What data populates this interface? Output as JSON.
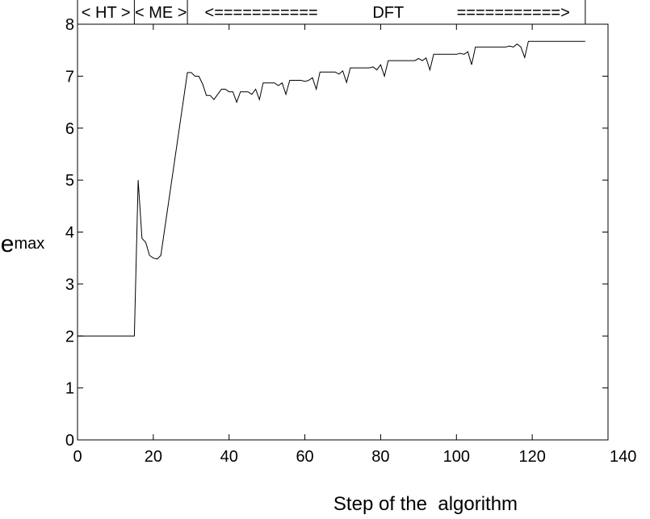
{
  "chart_data": {
    "type": "line",
    "title": "",
    "xlabel": "Step of the  algorithm",
    "ylabel": {
      "main": "e",
      "sub": "max"
    },
    "xlim": [
      0,
      140
    ],
    "ylim": [
      0,
      8
    ],
    "xticks": [
      0,
      20,
      40,
      60,
      80,
      100,
      120,
      140
    ],
    "yticks": [
      0,
      1,
      2,
      3,
      4,
      5,
      6,
      7,
      8
    ],
    "grid": false,
    "legend": "none",
    "line_color": "#000000",
    "phase_annotations": [
      {
        "label": "< HT >",
        "from": 0,
        "to": 15
      },
      {
        "label": "< ME >",
        "from": 15,
        "to": 29
      },
      {
        "label": "<===========",
        "from": 29,
        "to": 68
      },
      {
        "label": "DFT",
        "from": 68,
        "to": 96
      },
      {
        "label": "===========>",
        "from": 96,
        "to": 134
      }
    ],
    "series": [
      {
        "x": [
          0,
          15,
          16,
          17,
          18,
          19,
          20,
          21,
          22,
          29,
          30,
          31,
          32,
          33,
          34,
          35,
          36,
          37,
          38,
          39,
          40,
          41,
          42,
          43,
          44,
          45,
          46,
          47,
          48,
          49,
          50,
          51,
          52,
          53,
          54,
          55,
          56,
          57,
          58,
          59,
          60,
          61,
          62,
          63,
          64,
          65,
          66,
          67,
          68,
          69,
          70,
          71,
          72,
          73,
          74,
          75,
          76,
          77,
          78,
          79,
          80,
          81,
          82,
          83,
          84,
          85,
          86,
          87,
          88,
          89,
          90,
          91,
          92,
          93,
          94,
          95,
          96,
          97,
          98,
          99,
          100,
          101,
          102,
          103,
          104,
          105,
          106,
          107,
          108,
          109,
          110,
          111,
          112,
          113,
          114,
          115,
          116,
          117,
          118,
          119,
          120,
          134
        ],
        "y": [
          2.0,
          2.0,
          5.0,
          3.88,
          3.8,
          3.55,
          3.5,
          3.48,
          3.55,
          7.07,
          7.07,
          7.0,
          7.0,
          6.85,
          6.63,
          6.63,
          6.55,
          6.65,
          6.75,
          6.75,
          6.7,
          6.7,
          6.5,
          6.7,
          6.7,
          6.7,
          6.65,
          6.75,
          6.55,
          6.87,
          6.87,
          6.87,
          6.87,
          6.82,
          6.87,
          6.65,
          6.92,
          6.92,
          6.92,
          6.92,
          6.9,
          6.92,
          6.97,
          6.75,
          7.08,
          7.08,
          7.08,
          7.08,
          7.08,
          7.04,
          7.1,
          6.88,
          7.16,
          7.16,
          7.16,
          7.16,
          7.16,
          7.16,
          7.18,
          7.12,
          7.22,
          7.0,
          7.3,
          7.3,
          7.3,
          7.3,
          7.3,
          7.3,
          7.3,
          7.3,
          7.34,
          7.3,
          7.35,
          7.12,
          7.42,
          7.42,
          7.42,
          7.42,
          7.42,
          7.42,
          7.42,
          7.44,
          7.42,
          7.47,
          7.22,
          7.56,
          7.56,
          7.56,
          7.56,
          7.56,
          7.56,
          7.56,
          7.56,
          7.56,
          7.58,
          7.56,
          7.62,
          7.56,
          7.36,
          7.67,
          7.67,
          7.67
        ]
      }
    ]
  }
}
